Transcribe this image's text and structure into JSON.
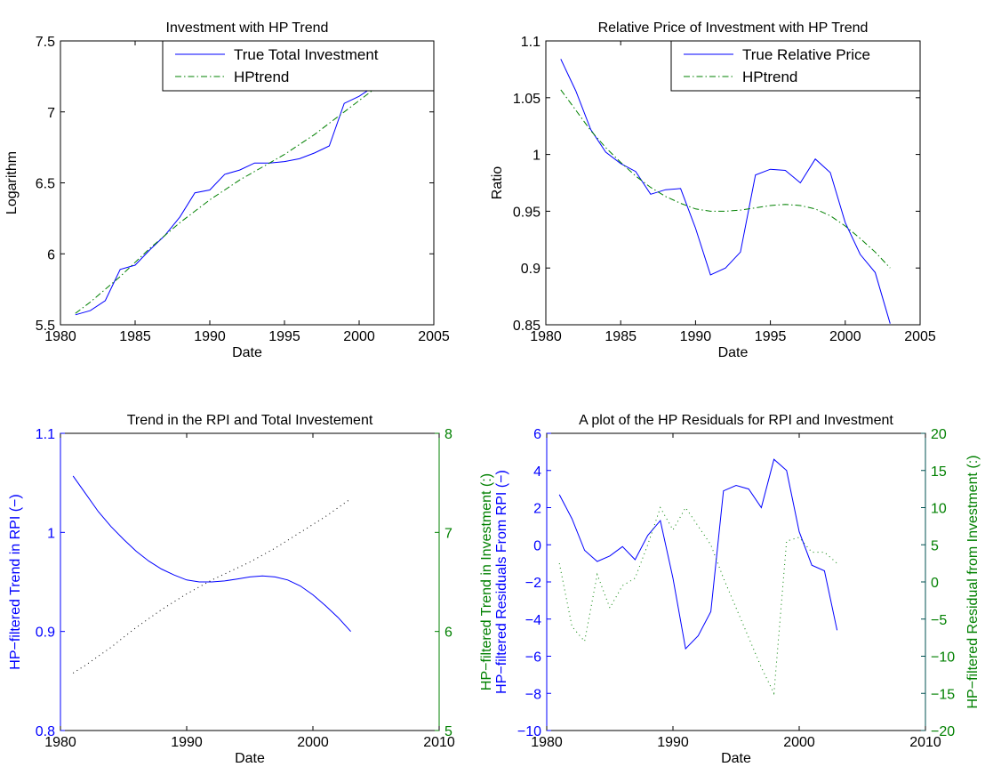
{
  "colors": {
    "axes": "#000000",
    "blue": "#0000ff",
    "green": "#008000",
    "dark": "#000000"
  },
  "chart_data": [
    {
      "type": "line",
      "title": "Investment with HP Trend",
      "xlabel": "Date",
      "ylabel": "Logarithm",
      "xlim": [
        1980,
        2005
      ],
      "ylim": [
        5.5,
        7.5
      ],
      "xticks": [
        "1980",
        "1985",
        "1990",
        "1995",
        "2000",
        "2005"
      ],
      "yticks": [
        "5.5",
        "6",
        "6.5",
        "7",
        "7.5"
      ],
      "legend_position": "top-right",
      "series": [
        {
          "name": "True Total Investment",
          "style": "solid",
          "color": "#0000ff",
          "x": [
            1981,
            1982,
            1983,
            1984,
            1985,
            1986,
            1987,
            1988,
            1989,
            1990,
            1991,
            1992,
            1993,
            1994,
            1995,
            1996,
            1997,
            1998,
            1999,
            2000,
            2001,
            2002,
            2003
          ],
          "values": [
            5.57,
            5.6,
            5.67,
            5.89,
            5.92,
            6.03,
            6.13,
            6.26,
            6.43,
            6.45,
            6.56,
            6.59,
            6.64,
            6.64,
            6.65,
            6.67,
            6.71,
            6.76,
            7.06,
            7.11,
            7.18,
            7.29,
            7.38
          ]
        },
        {
          "name": "HPtrend",
          "style": "dashdot",
          "color": "#008000",
          "x": [
            1981,
            1982,
            1983,
            1984,
            1985,
            1986,
            1987,
            1988,
            1989,
            1990,
            1991,
            1992,
            1993,
            1994,
            1995,
            1996,
            1997,
            1998,
            1999,
            2000,
            2001,
            2002,
            2003
          ],
          "values": [
            5.58,
            5.66,
            5.75,
            5.84,
            5.94,
            6.04,
            6.13,
            6.22,
            6.3,
            6.38,
            6.45,
            6.52,
            6.58,
            6.64,
            6.7,
            6.77,
            6.84,
            6.92,
            7.0,
            7.08,
            7.16,
            7.25,
            7.34
          ]
        }
      ]
    },
    {
      "type": "line",
      "title": "Relative Price of Investment with HP Trend",
      "xlabel": "Date",
      "ylabel": "Ratio",
      "xlim": [
        1980,
        2005
      ],
      "ylim": [
        0.85,
        1.1
      ],
      "xticks": [
        "1980",
        "1985",
        "1990",
        "1995",
        "2000",
        "2005"
      ],
      "yticks": [
        "0.85",
        "0.9",
        "0.95",
        "1",
        "1.05",
        "1.1"
      ],
      "legend_position": "top-right",
      "series": [
        {
          "name": "True Relative Price",
          "style": "solid",
          "color": "#0000ff",
          "x": [
            1981,
            1982,
            1983,
            1984,
            1985,
            1986,
            1987,
            1988,
            1989,
            1990,
            1991,
            1992,
            1993,
            1994,
            1995,
            1996,
            1997,
            1998,
            1999,
            2000,
            2001,
            2002,
            2003
          ],
          "values": [
            1.084,
            1.056,
            1.022,
            1.002,
            0.992,
            0.985,
            0.965,
            0.969,
            0.97,
            0.935,
            0.894,
            0.9,
            0.914,
            0.982,
            0.987,
            0.986,
            0.975,
            0.996,
            0.984,
            0.94,
            0.912,
            0.896,
            0.851
          ]
        },
        {
          "name": "HPtrend",
          "style": "dashdot",
          "color": "#008000",
          "x": [
            1981,
            1982,
            1983,
            1984,
            1985,
            1986,
            1987,
            1988,
            1989,
            1990,
            1991,
            1992,
            1993,
            1994,
            1995,
            1996,
            1997,
            1998,
            1999,
            2000,
            2001,
            2002,
            2003
          ],
          "values": [
            1.057,
            1.039,
            1.021,
            1.006,
            0.993,
            0.981,
            0.971,
            0.963,
            0.957,
            0.952,
            0.95,
            0.95,
            0.951,
            0.953,
            0.955,
            0.956,
            0.955,
            0.952,
            0.946,
            0.937,
            0.926,
            0.914,
            0.9
          ]
        }
      ]
    },
    {
      "type": "line",
      "title": "Trend in the RPI and Total Investement",
      "xlabel": "Date",
      "ylabel": "HP−filtered Trend in RPI (−)",
      "ylabel_right": "HP−filtered Trend in Investment (:)",
      "xlim": [
        1980,
        2010
      ],
      "ylim": [
        0.8,
        1.1
      ],
      "ylim_right": [
        5,
        8
      ],
      "xticks": [
        "1980",
        "1990",
        "2000",
        "2010"
      ],
      "yticks": [
        "0.8",
        "0.9",
        "1",
        "1.1"
      ],
      "yticks_right": [
        "5",
        "6",
        "7",
        "8"
      ],
      "series": [
        {
          "style": "solid",
          "color": "#0000ff",
          "axis": "left",
          "x": [
            1981,
            1982,
            1983,
            1984,
            1985,
            1986,
            1987,
            1988,
            1989,
            1990,
            1991,
            1992,
            1993,
            1994,
            1995,
            1996,
            1997,
            1998,
            1999,
            2000,
            2001,
            2002,
            2003
          ],
          "values": [
            1.057,
            1.039,
            1.021,
            1.006,
            0.993,
            0.981,
            0.971,
            0.963,
            0.957,
            0.952,
            0.95,
            0.95,
            0.951,
            0.953,
            0.955,
            0.956,
            0.955,
            0.952,
            0.946,
            0.937,
            0.926,
            0.914,
            0.9
          ]
        },
        {
          "style": "dotted",
          "color": "#000000",
          "axis": "right",
          "x": [
            1981,
            1982,
            1983,
            1984,
            1985,
            1986,
            1987,
            1988,
            1989,
            1990,
            1991,
            1992,
            1993,
            1994,
            1995,
            1996,
            1997,
            1998,
            1999,
            2000,
            2001,
            2002,
            2003
          ],
          "values": [
            5.58,
            5.66,
            5.75,
            5.84,
            5.94,
            6.04,
            6.13,
            6.22,
            6.3,
            6.38,
            6.45,
            6.52,
            6.58,
            6.64,
            6.7,
            6.77,
            6.84,
            6.92,
            7.0,
            7.08,
            7.16,
            7.25,
            7.34
          ]
        }
      ]
    },
    {
      "type": "line",
      "title": "A plot of the HP Residuals for RPI and Investment",
      "xlabel": "Date",
      "ylabel": "HP−filtered Residuals From RPI (−)",
      "ylabel_right": "HP−filtered Residual from Investment (:)",
      "xlim": [
        1980,
        2010
      ],
      "ylim": [
        -10,
        6
      ],
      "ylim_right": [
        -20,
        20
      ],
      "xticks": [
        "1980",
        "1990",
        "2000",
        "2010"
      ],
      "yticks": [
        "−10",
        "−8",
        "−6",
        "−4",
        "−2",
        "0",
        "2",
        "4",
        "6"
      ],
      "yticks_right": [
        "−20",
        "−15",
        "−10",
        "−5",
        "0",
        "5",
        "10",
        "15",
        "20"
      ],
      "series": [
        {
          "style": "solid",
          "color": "#0000ff",
          "axis": "left",
          "x": [
            1981,
            1982,
            1983,
            1984,
            1985,
            1986,
            1987,
            1988,
            1989,
            1990,
            1991,
            1992,
            1993,
            1994,
            1995,
            1996,
            1997,
            1998,
            1999,
            2000,
            2001,
            2002,
            2003
          ],
          "values": [
            2.7,
            1.4,
            -0.3,
            -0.9,
            -0.6,
            -0.1,
            -0.8,
            0.5,
            1.3,
            -1.8,
            -5.6,
            -4.9,
            -3.6,
            2.9,
            3.2,
            3.0,
            2.0,
            4.6,
            4.0,
            0.7,
            -1.1,
            -1.4,
            -4.6
          ]
        },
        {
          "style": "dotted",
          "color": "#008000",
          "axis": "right",
          "x": [
            1981,
            1982,
            1983,
            1984,
            1985,
            1986,
            1987,
            1988,
            1989,
            1990,
            1991,
            1992,
            1993,
            1994,
            1995,
            1996,
            1997,
            1998,
            1999,
            2000,
            2001,
            2002,
            2003
          ],
          "values": [
            2.5,
            -6.0,
            -8.0,
            1.0,
            -3.5,
            -0.5,
            0.5,
            5.0,
            10.0,
            7.0,
            10.0,
            7.5,
            5.0,
            0.5,
            -3.5,
            -7.5,
            -11.5,
            -15.0,
            5.5,
            6.0,
            4.0,
            4.0,
            2.5
          ]
        }
      ]
    }
  ]
}
